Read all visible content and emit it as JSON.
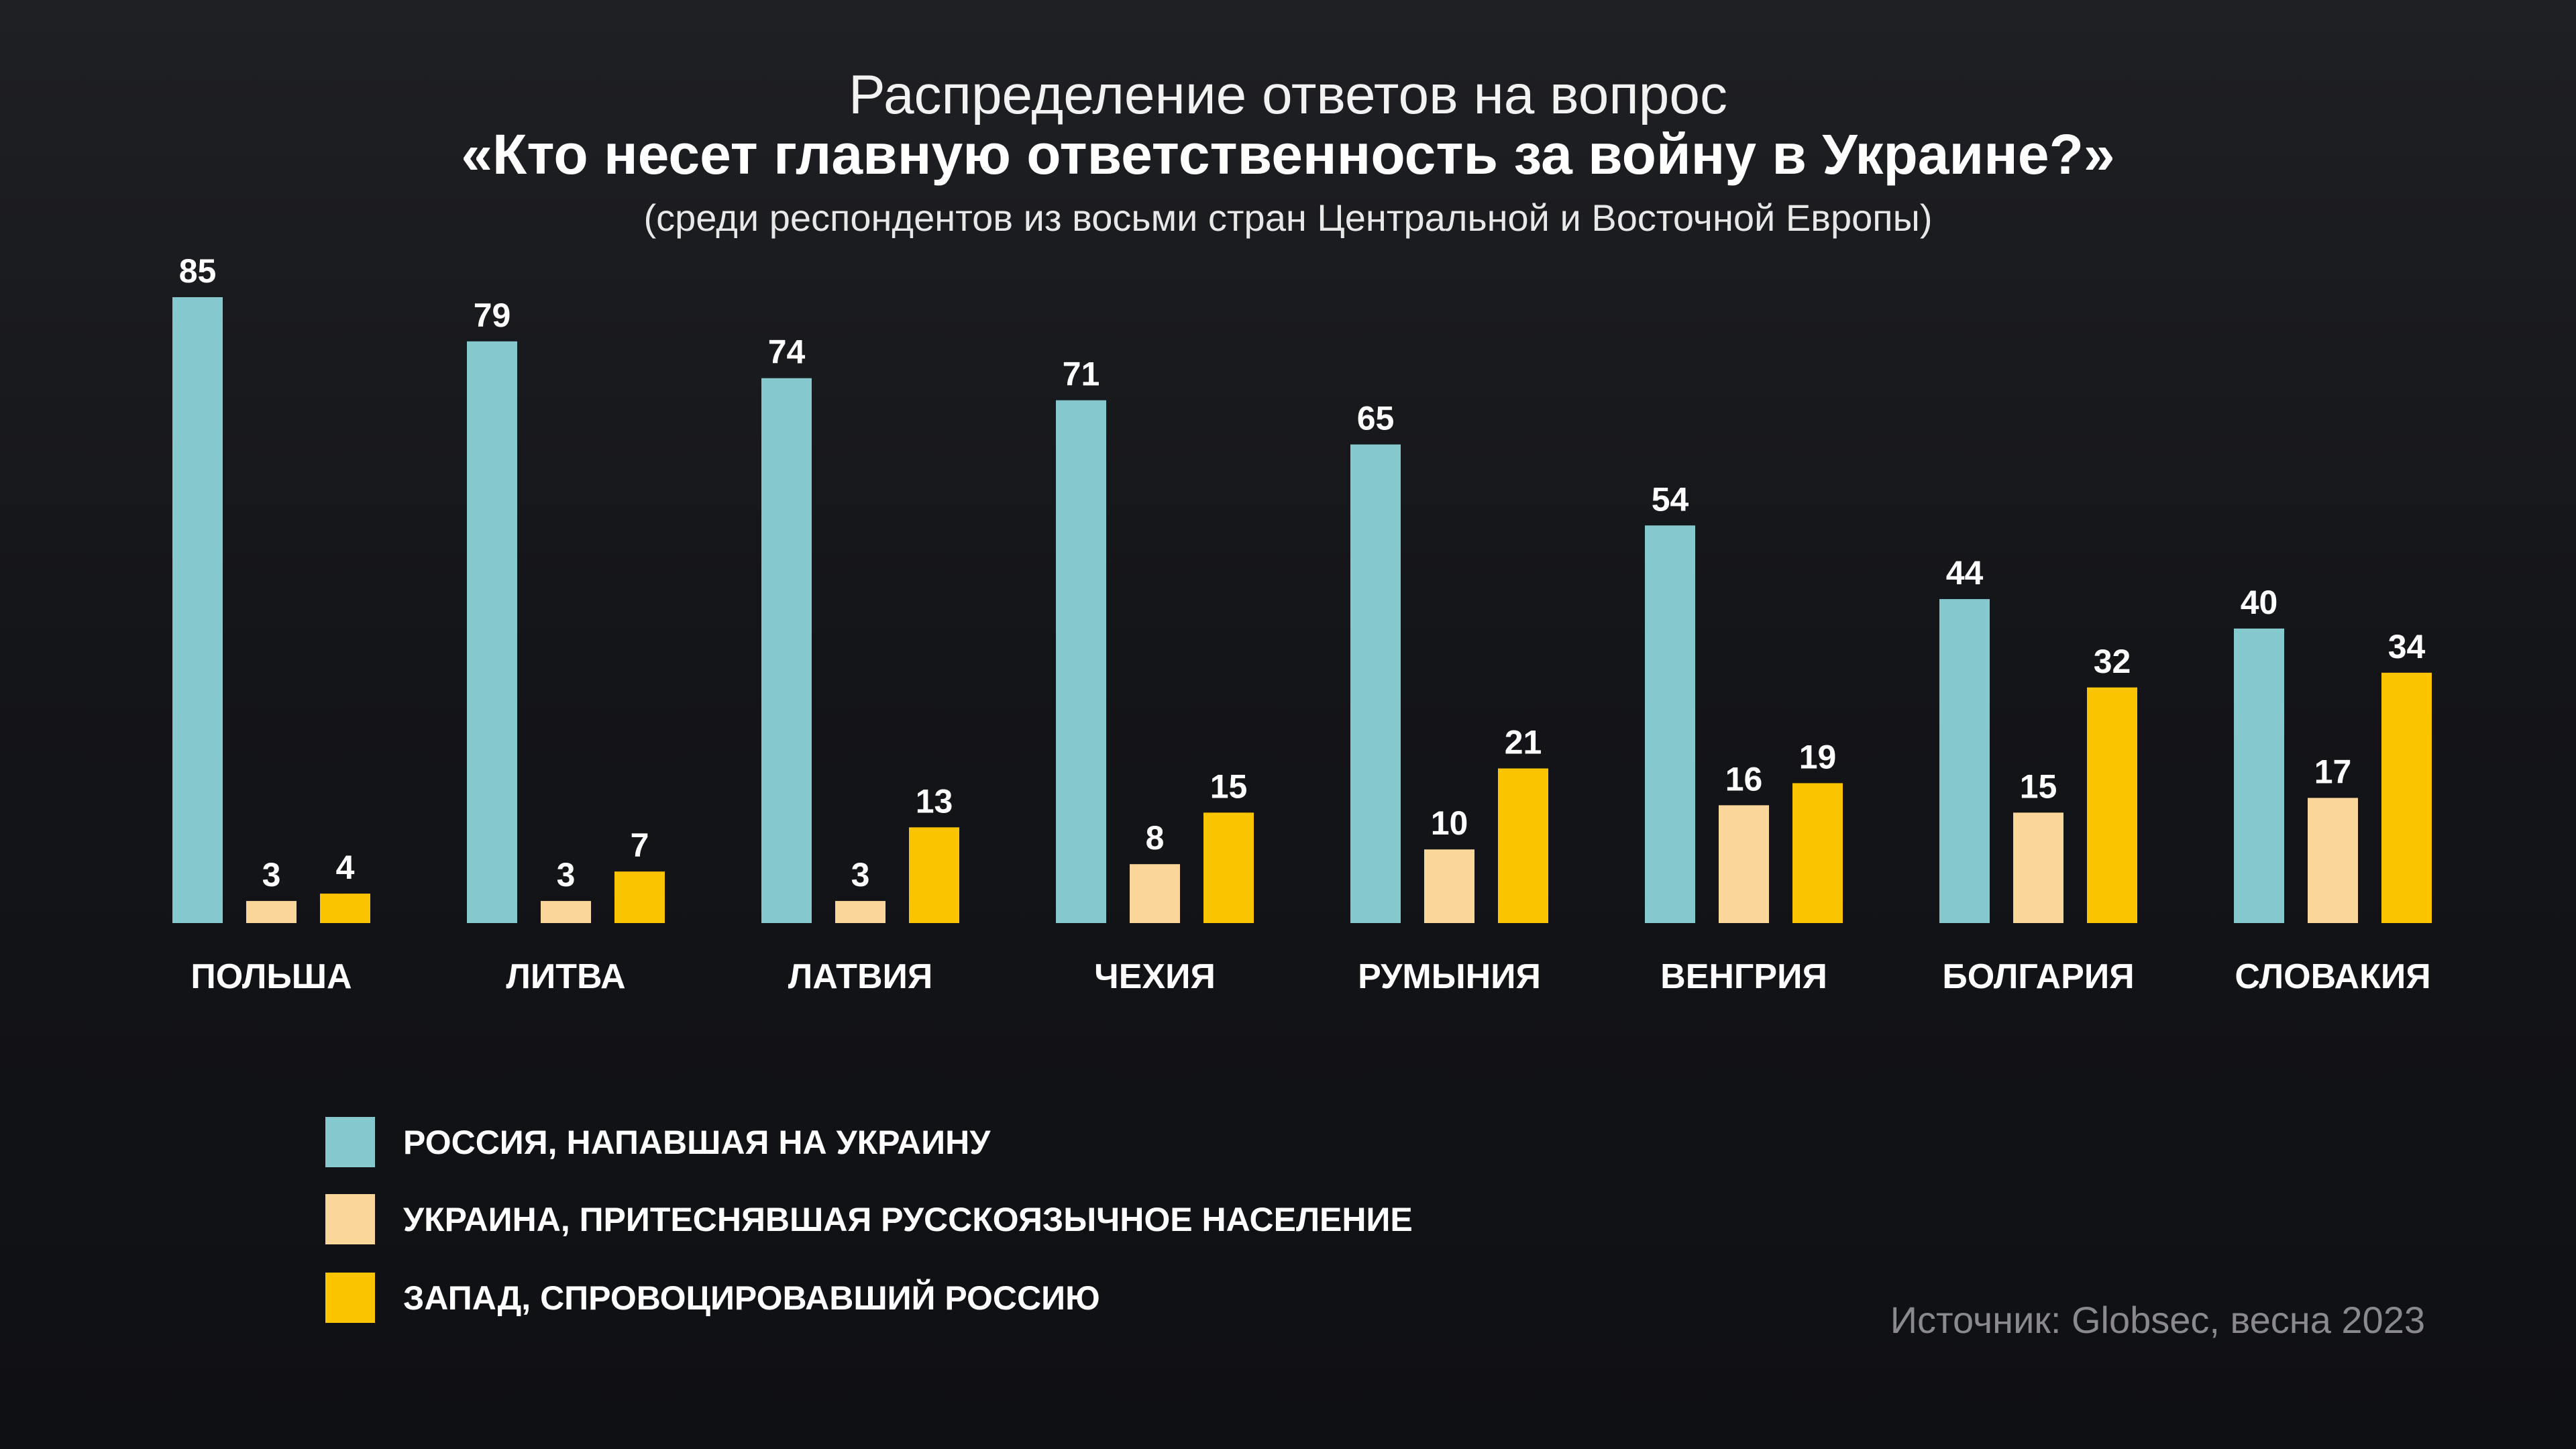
{
  "chart_data": {
    "type": "bar",
    "title": "Распределение ответов на вопрос",
    "title_main": "«Кто несет главную ответственность за войну в Украине?»",
    "subtitle": "(среди респондентов из восьми стран Центральной и Восточной Европы)",
    "categories": [
      "ПОЛЬША",
      "ЛИТВА",
      "ЛАТВИЯ",
      "ЧЕХИЯ",
      "РУМЫНИЯ",
      "ВЕНГРИЯ",
      "БОЛГАРИЯ",
      "СЛОВАКИЯ"
    ],
    "series": [
      {
        "name": "РОССИЯ, НАПАВШАЯ НА УКРАИНУ",
        "color": "#85C8CE",
        "values": [
          85,
          79,
          74,
          71,
          65,
          54,
          44,
          40
        ]
      },
      {
        "name": "УКРАИНА, ПРИТЕСНЯВШАЯ РУССКОЯЗЫЧНОЕ НАСЕЛЕНИЕ",
        "color": "#FAD69A",
        "values": [
          3,
          3,
          3,
          8,
          10,
          16,
          15,
          17
        ]
      },
      {
        "name": "ЗАПАД, СПРОВОЦИРОВАВШИЙ РОССИЮ",
        "color": "#FBC400",
        "values": [
          4,
          7,
          13,
          15,
          21,
          19,
          32,
          34
        ]
      }
    ],
    "xlabel": "",
    "ylabel": "",
    "ylim": [
      0,
      85
    ],
    "grid": false,
    "legend_position": "bottom-left",
    "source": "Источник: Globsec, весна 2023"
  }
}
